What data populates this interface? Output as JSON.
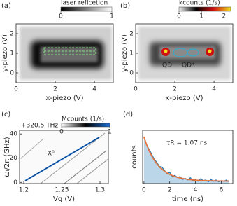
{
  "chart_data": [
    {
      "type": "heatmap",
      "label": "(a)",
      "xlabel": "x-piezo (V)",
      "ylabel": "y-piezo (V)",
      "xlim": [
        0,
        4.96
      ],
      "ylim": [
        -0.5,
        2.5
      ],
      "xticks": [
        0,
        2,
        4
      ],
      "yticks": [
        0,
        1,
        2
      ],
      "colorbar": {
        "label": "laser reflcetion",
        "lim": [
          0,
          1
        ],
        "ticks": [
          0,
          1
        ],
        "colormap": [
          "#000000",
          "#ffffff"
        ]
      },
      "annotations": []
    },
    {
      "type": "heatmap",
      "label": "(b)",
      "xlabel": "x-piezo (V)",
      "ylabel": "y-piezo (V)",
      "xlim": [
        0,
        4.96
      ],
      "ylim": [
        -0.5,
        2.5
      ],
      "xticks": [
        0,
        2,
        4
      ],
      "yticks": [
        0,
        1,
        2
      ],
      "colorbar": {
        "label": "kcounts (1/s)",
        "lim": [
          0,
          2.3
        ],
        "ticks": [
          0,
          1,
          2
        ],
        "colormap": [
          "#f0f0f0",
          "#000000",
          "#d01010",
          "#f0e020"
        ]
      },
      "annotations": [
        "QD",
        "QD*"
      ]
    },
    {
      "type": "heatmap",
      "label": "(c)",
      "xlabel": "Vg (V)",
      "ylabel": "ωₗ/2π (GHz)",
      "xlim": [
        1.1945,
        1.311
      ],
      "ylim": [
        -1,
        43
      ],
      "xticks": [
        1.2,
        1.25,
        1.3
      ],
      "yticks": [
        0,
        20,
        40
      ],
      "colorbar": {
        "label": "Mcounts (1/s)",
        "lim": [
          0,
          1
        ],
        "ticks": [
          0,
          1
        ],
        "colormap": [
          "#ffffff",
          "#000000",
          "#1a6fd0"
        ]
      },
      "annotations": [
        "X⁰",
        "+320.5 THz"
      ]
    },
    {
      "type": "line",
      "label": "(d)",
      "xlabel": "time (ns)",
      "ylabel": "counts",
      "xlim": [
        -0.1,
        6.9
      ],
      "ylim": [
        0,
        90
      ],
      "xticks": [
        0,
        2,
        4,
        6
      ],
      "yticks": [],
      "x": [
        0,
        0.2,
        0.4,
        0.6,
        0.8,
        1.0,
        1.2,
        1.4,
        1.6,
        1.8,
        2.0,
        2.2,
        2.4,
        2.6,
        2.8,
        3.0,
        3.2,
        3.4,
        3.6,
        3.8,
        4.0,
        4.2,
        4.4,
        4.6,
        4.8,
        5.0,
        5.2,
        5.4,
        5.6,
        5.8,
        6.0,
        6.2,
        6.4,
        6.6
      ],
      "series": [
        {
          "color": "#1f77b4",
          "area": true,
          "values": [
            79,
            66,
            58,
            50,
            41,
            36,
            29,
            28,
            22,
            17,
            19,
            12,
            14,
            10,
            12,
            7,
            9,
            6,
            10,
            5,
            7,
            4,
            8,
            5,
            6,
            3,
            7,
            4,
            6,
            3,
            5,
            4,
            6,
            3
          ]
        },
        {
          "color": "#e8743b",
          "area": false,
          "values": [
            79,
            66.2,
            55.6,
            46.8,
            39.5,
            33.5,
            28.4,
            24.3,
            20.8,
            17.9,
            15.6,
            13.6,
            12.0,
            10.6,
            9.5,
            8.5,
            7.8,
            7.1,
            6.6,
            6.2,
            5.8,
            5.5,
            5.2,
            5.0,
            4.8,
            4.7,
            4.6,
            4.5,
            4.4,
            4.3,
            4.3,
            4.2,
            4.2,
            4.2
          ]
        }
      ],
      "annotations": [
        "τR = 1.07 ns"
      ]
    }
  ]
}
